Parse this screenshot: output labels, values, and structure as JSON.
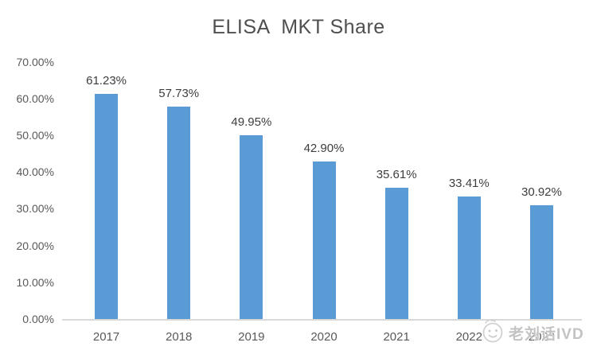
{
  "chart_data": {
    "type": "bar",
    "title": "ELISA  MKT Share",
    "categories": [
      "2017",
      "2018",
      "2019",
      "2020",
      "2021",
      "2022",
      "2023"
    ],
    "values": [
      61.23,
      57.73,
      49.95,
      42.9,
      35.61,
      33.41,
      30.92
    ],
    "data_labels": [
      "61.23%",
      "57.73%",
      "49.95%",
      "42.90%",
      "35.61%",
      "33.41%",
      "30.92%"
    ],
    "y_ticks": [
      {
        "value": 0,
        "label": "0.00%"
      },
      {
        "value": 10,
        "label": "10.00%"
      },
      {
        "value": 20,
        "label": "20.00%"
      },
      {
        "value": 30,
        "label": "30.00%"
      },
      {
        "value": 40,
        "label": "40.00%"
      },
      {
        "value": 50,
        "label": "50.00%"
      },
      {
        "value": 60,
        "label": "60.00%"
      },
      {
        "value": 70,
        "label": "70.00%"
      }
    ],
    "xlabel": "",
    "ylabel": "",
    "ylim": [
      0,
      70
    ],
    "grid": false,
    "legend": "none",
    "bar_color": "#5B9BD5",
    "axis_line_color": "#D9D9D9",
    "axis_text_color": "#595959",
    "title_color": "#4f4f4f",
    "data_label_color": "#3d3d3d"
  },
  "watermark": {
    "text": "老刘话IVD",
    "icon": "smiley-face-icon"
  }
}
